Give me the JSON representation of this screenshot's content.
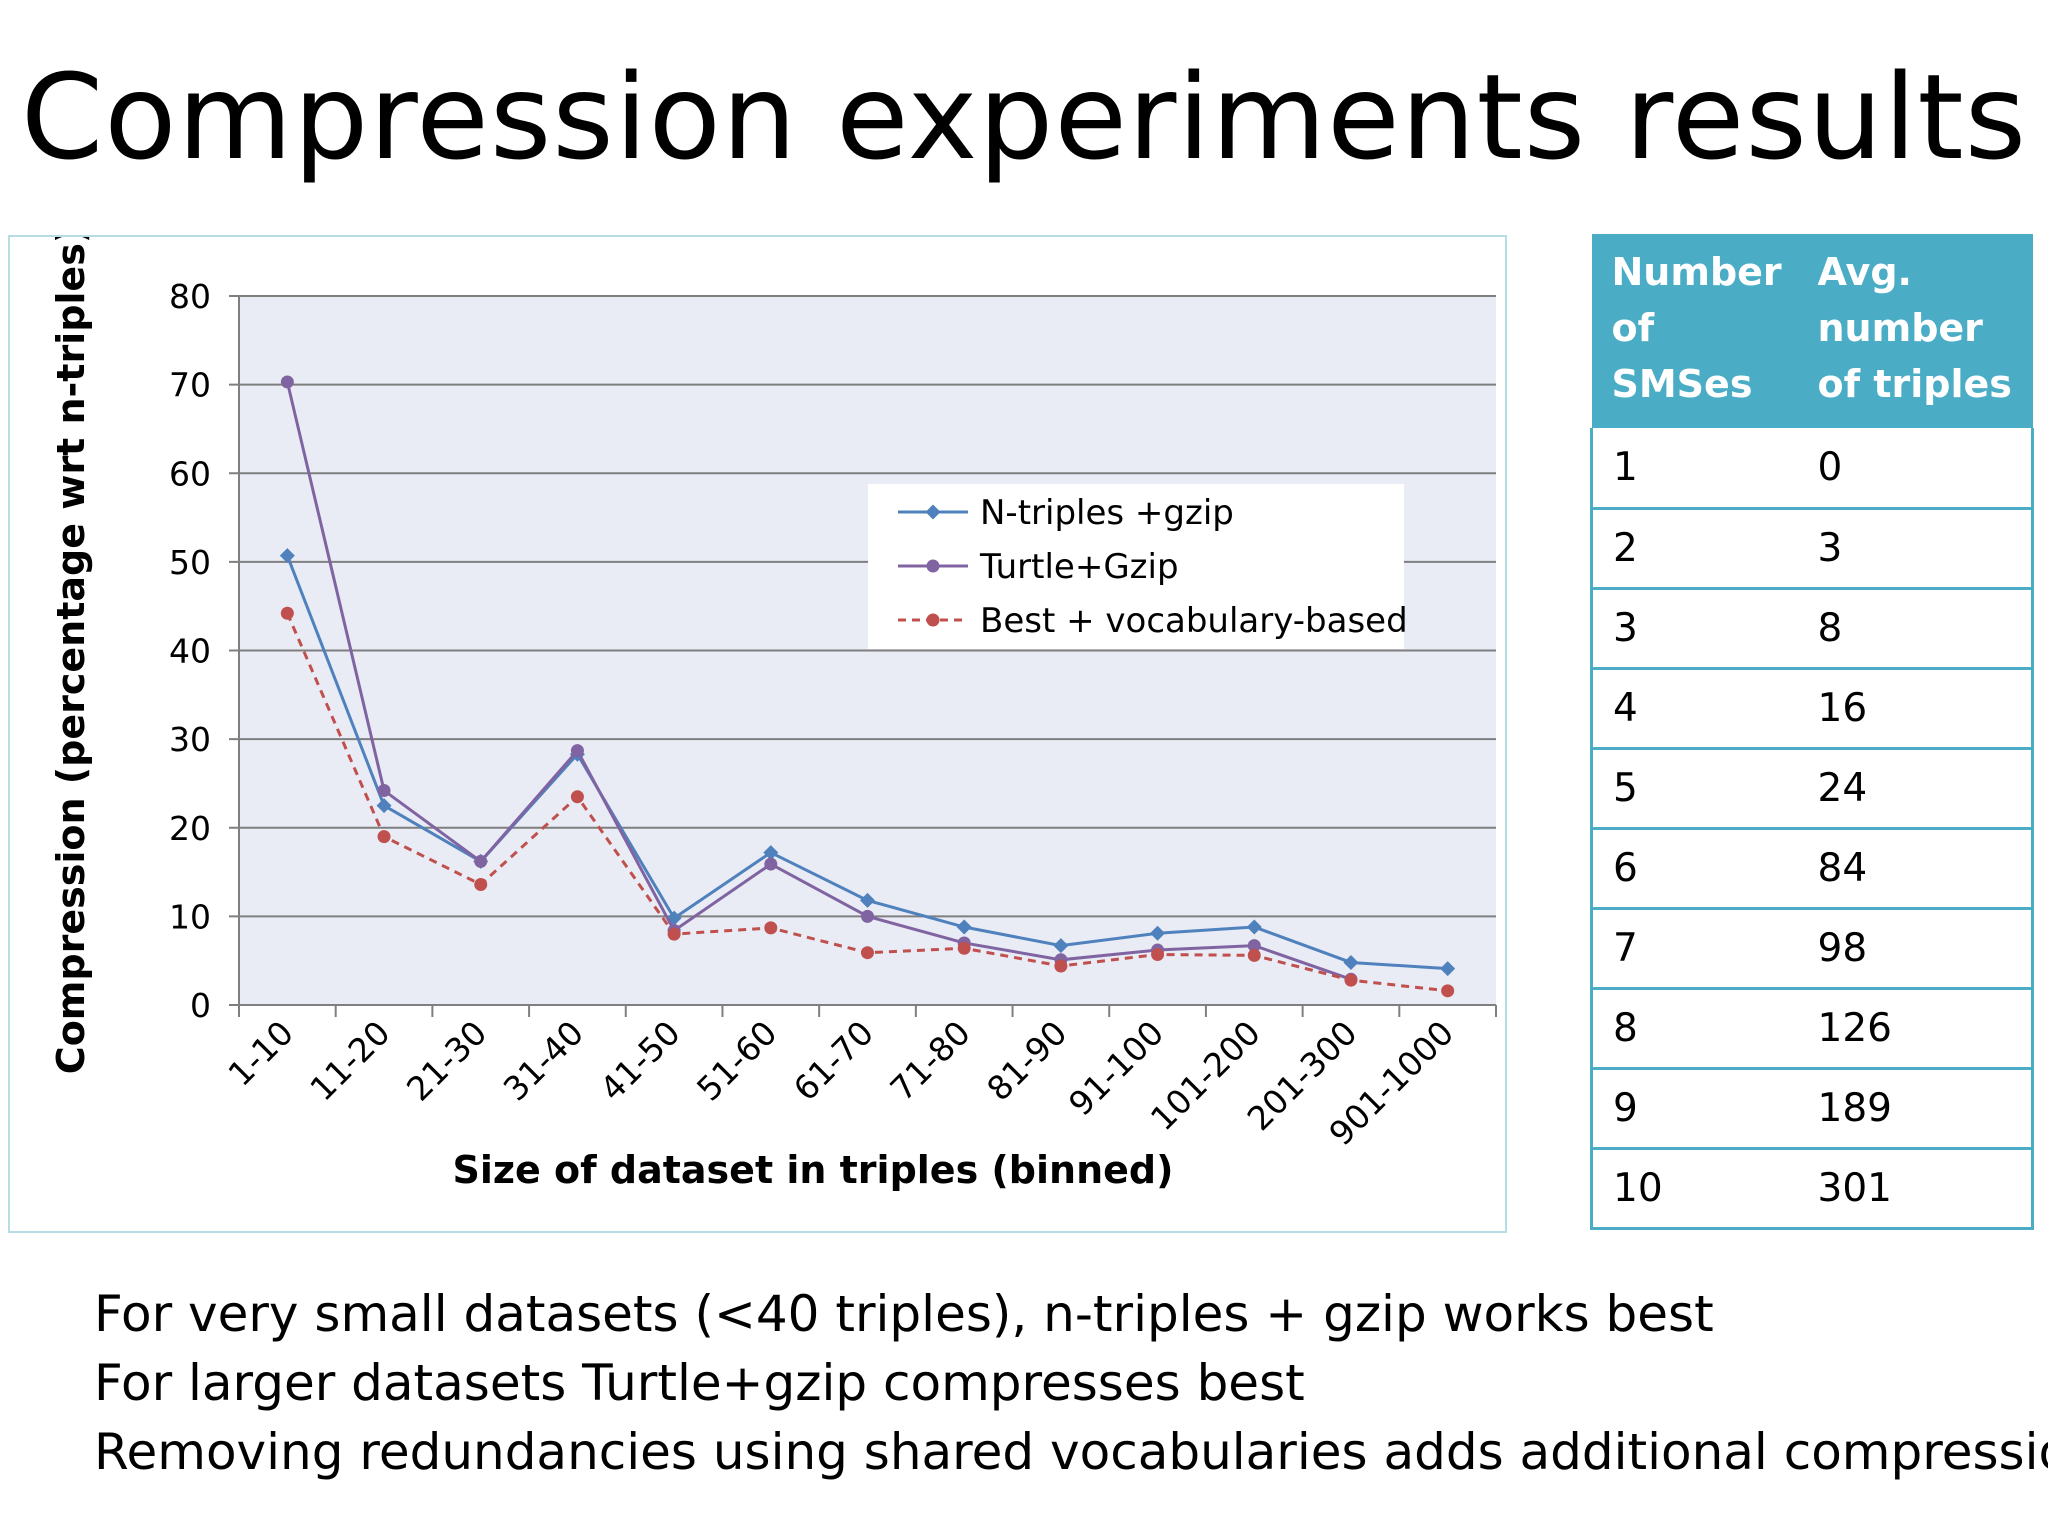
{
  "slide": {
    "title": "Compression experiments results"
  },
  "chart_data": {
    "type": "line",
    "title": "",
    "xlabel": "Size of dataset in triples (binned)",
    "ylabel": "Compression (percentage wrt n-triples)",
    "ylim": [
      0,
      80
    ],
    "yticks": [
      0,
      10,
      20,
      30,
      40,
      50,
      60,
      70,
      80
    ],
    "grid": true,
    "legend_position": "upper-right inside plot",
    "plot_background": "#e9ebf5",
    "categories": [
      "1-10",
      "11-20",
      "21-30",
      "31-40",
      "41-50",
      "51-60",
      "61-70",
      "71-80",
      "81-90",
      "91-100",
      "101-200",
      "201-300",
      "901-1000"
    ],
    "series": [
      {
        "name": "N-triples +gzip",
        "color": "#4f81bd",
        "marker": "diamond",
        "dash": "solid",
        "values": [
          50.7,
          22.5,
          16.2,
          28.3,
          9.8,
          17.2,
          11.8,
          8.8,
          6.7,
          8.1,
          8.8,
          4.8,
          4.1
        ]
      },
      {
        "name": "Turtle+Gzip",
        "color": "#8064a2",
        "marker": "circle",
        "dash": "solid",
        "values": [
          70.3,
          24.2,
          16.2,
          28.7,
          8.4,
          15.9,
          10.0,
          7.0,
          5.1,
          6.2,
          6.7,
          2.9,
          null
        ]
      },
      {
        "name": "Best + vocabulary-based",
        "color": "#c0504d",
        "marker": "circle",
        "dash": "dashed",
        "values": [
          44.2,
          19.0,
          13.6,
          23.5,
          8.0,
          8.7,
          5.9,
          6.4,
          4.4,
          5.7,
          5.6,
          2.8,
          1.6
        ]
      }
    ]
  },
  "table": {
    "headers": [
      [
        "Number",
        "of SMSes"
      ],
      [
        "Avg.",
        "number",
        "of triples"
      ]
    ],
    "rows": [
      [
        "1",
        "0"
      ],
      [
        "2",
        "3"
      ],
      [
        "3",
        "8"
      ],
      [
        "4",
        "16"
      ],
      [
        "5",
        "24"
      ],
      [
        "6",
        "84"
      ],
      [
        "7",
        "98"
      ],
      [
        "8",
        "126"
      ],
      [
        "9",
        "189"
      ],
      [
        "10",
        "301"
      ]
    ],
    "header_color": "#4bacc6"
  },
  "findings": [
    "For very small datasets (<40 triples), n-triples + gzip works best",
    "For larger datasets Turtle+gzip compresses best",
    "Removing redundancies using shared vocabularies adds additional compression"
  ]
}
